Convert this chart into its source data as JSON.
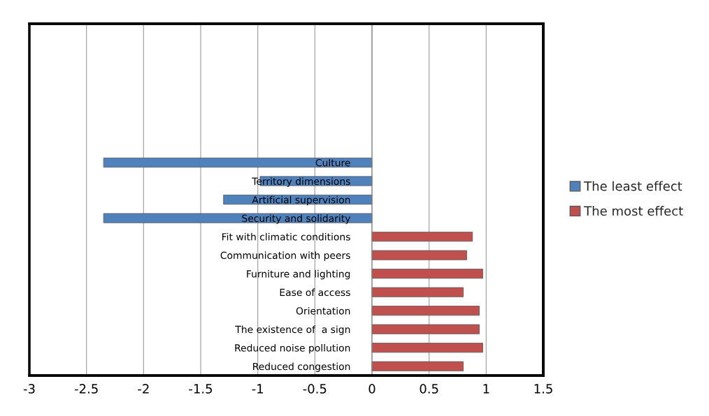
{
  "chart_data": {
    "type": "bar",
    "orientation": "horizontal",
    "categories": [
      null,
      null,
      null,
      null,
      null,
      null,
      null,
      "Culture",
      "Territory dimensions",
      "Artificial supervision",
      "Security and solidarity",
      "Fit with climatic conditions",
      "Communication with peers",
      "Furniture and lighting",
      "Ease of access",
      "Orientation",
      "The existence of  a sign",
      "Reduced noise pollution",
      "Reduced congestion"
    ],
    "series": [
      {
        "name": "The least effect",
        "color": "#4f81bd",
        "values": [
          null,
          null,
          null,
          null,
          null,
          null,
          null,
          -2.35,
          -0.98,
          -1.3,
          -2.35,
          null,
          null,
          null,
          null,
          null,
          null,
          null,
          null
        ]
      },
      {
        "name": "The most effect",
        "color": "#c0504d",
        "values": [
          null,
          null,
          null,
          null,
          null,
          null,
          null,
          null,
          null,
          null,
          null,
          0.88,
          0.83,
          0.97,
          0.8,
          0.94,
          0.94,
          0.97,
          0.8
        ]
      }
    ],
    "xlim": [
      -3,
      1.5
    ],
    "xticks": [
      -3,
      -2.5,
      -2,
      -1.5,
      -1,
      -0.5,
      0,
      0.5,
      1,
      1.5
    ],
    "grid": "x",
    "legend": "right"
  }
}
